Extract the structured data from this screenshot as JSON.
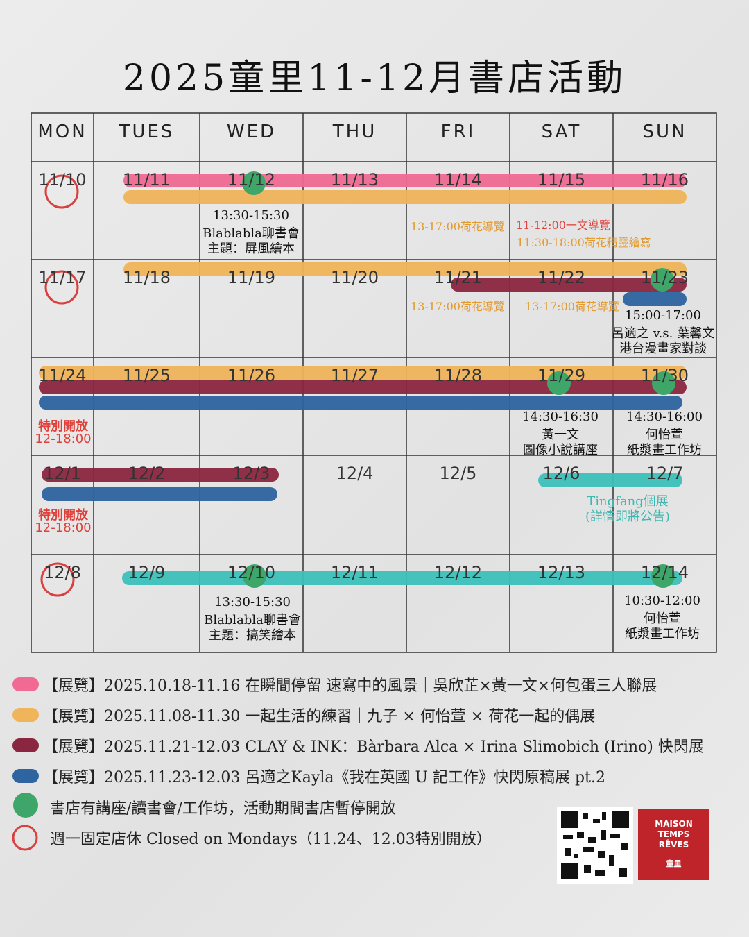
{
  "title": "2025童里11-12月書店活動",
  "weekdays": [
    "MON",
    "TUES",
    "WED",
    "THU",
    "FRI",
    "SAT",
    "SUN"
  ],
  "weeks": [
    {
      "dates": [
        "11/10",
        "11/11",
        "11/12",
        "11/13",
        "11/14",
        "11/15",
        "11/16"
      ],
      "notes": [
        [
          "13:30-15:30",
          "Blablabla聊書會",
          "主題：屏風繪本"
        ],
        [
          "13-17:00荷花導覽"
        ],
        [
          "11-12:00一文導覽"
        ],
        [
          "11:30-18:00荷花精靈繪寫"
        ]
      ]
    },
    {
      "dates": [
        "11/17",
        "11/18",
        "11/19",
        "11/20",
        "11/21",
        "11/22",
        "11/23"
      ],
      "notes": [
        [
          "13-17:00荷花導覽"
        ],
        [
          "13-17:00荷花導覽"
        ],
        [
          "15:00-17:00",
          "呂適之 v.s. 葉馨文",
          "港台漫畫家對談"
        ]
      ]
    },
    {
      "dates": [
        "11/24",
        "11/25",
        "11/26",
        "11/27",
        "11/28",
        "11/29",
        "11/30"
      ],
      "notes": [
        [
          "特別開放",
          "12-18:00"
        ],
        [
          "14:30-16:30",
          "黃一文",
          "圖像小說講座"
        ],
        [
          "14:30-16:00",
          "何怡萱",
          "紙漿畫工作坊"
        ]
      ]
    },
    {
      "dates": [
        "12/1",
        "12/2",
        "12/3",
        "12/4",
        "12/5",
        "12/6",
        "12/7"
      ],
      "notes": [
        [
          "特別開放",
          "12-18:00"
        ],
        [
          "Tingfang個展",
          "(詳情即將公告)"
        ]
      ]
    },
    {
      "dates": [
        "12/8",
        "12/9",
        "12/10",
        "12/11",
        "12/12",
        "12/13",
        "12/14"
      ],
      "notes": [
        [
          "13:30-15:30",
          "Blablabla聊書會",
          "主題：搞笑繪本"
        ],
        [
          "10:30-12:00",
          "何怡萱",
          "紙漿畫工作坊"
        ]
      ]
    }
  ],
  "legend": [
    "【展覽】2025.10.18-11.16 在瞬間停留 速寫中的風景｜吳欣芷×黃一文×何包蛋三人聯展",
    "【展覽】2025.11.08-11.30 一起生活的練習｜九子 × 何怡萱 × 荷花一起的偶展",
    "【展覽】2025.11.21-12.03  CLAY & INK：Bàrbara Alca × Irina Slimobich (Irino) 快閃展",
    "【展覽】2025.11.23-12.03 呂適之Kayla《我在英國 U 記工作》快閃原稿展 pt.2",
    "書店有講座/讀書會/工作坊，活動期間書店暫停開放",
    "週一固定店休 Closed on Mondays（11.24、12.03特別開放）"
  ],
  "logo": {
    "lines": [
      "MAISON",
      "TEMPS",
      "RÊVES"
    ],
    "name": "童里"
  }
}
